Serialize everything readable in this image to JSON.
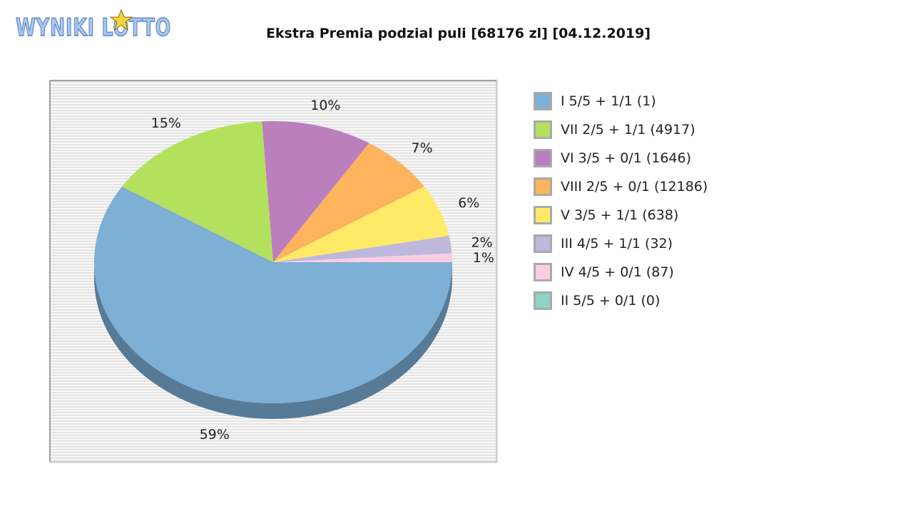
{
  "logo": {
    "text": "WYNIKI LOTTO"
  },
  "chart_data": {
    "type": "pie",
    "title": "Ekstra Premia podzial puli [68176 zl] [04.12.2019]",
    "legend_position": "right",
    "slices": [
      {
        "label": "I 5/5 + 1/1 (1)",
        "value": 59,
        "percent_label": "59%",
        "color": "#7eafd5",
        "side_color": "#577a96"
      },
      {
        "label": "VII 2/5 + 1/1 (4917)",
        "value": 15,
        "percent_label": "15%",
        "color": "#b3e15d",
        "side_color": "#7e9e41"
      },
      {
        "label": "VI 3/5 + 0/1 (1646)",
        "value": 10,
        "percent_label": "10%",
        "color": "#bc7fbd",
        "side_color": "#845985"
      },
      {
        "label": "VIII 2/5 + 0/1 (12186)",
        "value": 7,
        "percent_label": "7%",
        "color": "#fdb45c",
        "side_color": "#b27e40"
      },
      {
        "label": "V 3/5 + 1/1 (638)",
        "value": 6,
        "percent_label": "6%",
        "color": "#ffea67",
        "side_color": "#b3a448"
      },
      {
        "label": "III 4/5 + 1/1 (32)",
        "value": 2,
        "percent_label": "2%",
        "color": "#beb8dc",
        "side_color": "#85819a"
      },
      {
        "label": "IV 4/5 + 0/1 (87)",
        "value": 1,
        "percent_label": "1%",
        "color": "#fccde5",
        "side_color": "#b190a0"
      },
      {
        "label": "II 5/5 + 0/1 (0)",
        "value": 0,
        "percent_label": "",
        "color": "#8dd3c7",
        "side_color": "#63948b"
      }
    ]
  }
}
